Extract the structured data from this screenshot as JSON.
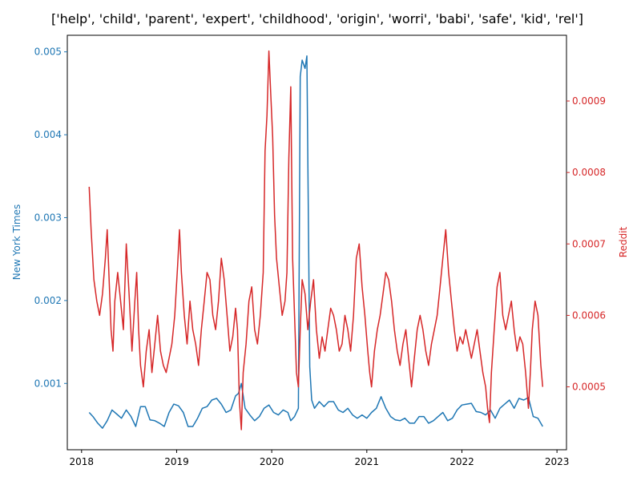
{
  "chart_data": {
    "type": "line",
    "title": "['help', 'child', 'parent', 'expert', 'childhood', 'origin', 'worri', 'babi', 'safe', 'kid', 'rel']",
    "xlabel": "",
    "x_ticks": [
      "2018",
      "2019",
      "2020",
      "2021",
      "2022",
      "2023"
    ],
    "xlim": [
      2017.85,
      2023.1
    ],
    "grid": false,
    "left_axis": {
      "label": "New York Times",
      "color": "#1f77b4",
      "ylim": [
        0.0002,
        0.0052
      ],
      "ticks": [
        "0.001",
        "0.002",
        "0.003",
        "0.004",
        "0.005"
      ]
    },
    "right_axis": {
      "label": "Reddit",
      "color": "#d62728",
      "ylim": [
        0.000412,
        0.000992
      ],
      "ticks": [
        "0.0005",
        "0.0006",
        "0.0007",
        "0.0008",
        "0.0009"
      ]
    },
    "series": [
      {
        "name": "New York Times",
        "axis": "left",
        "color": "#1f77b4",
        "x": [
          2018.08,
          2018.12,
          2018.17,
          2018.22,
          2018.27,
          2018.32,
          2018.37,
          2018.42,
          2018.47,
          2018.52,
          2018.57,
          2018.62,
          2018.67,
          2018.72,
          2018.77,
          2018.82,
          2018.87,
          2018.92,
          2018.97,
          2019.02,
          2019.07,
          2019.12,
          2019.17,
          2019.22,
          2019.27,
          2019.32,
          2019.37,
          2019.42,
          2019.47,
          2019.52,
          2019.57,
          2019.62,
          2019.65,
          2019.68,
          2019.72,
          2019.77,
          2019.82,
          2019.87,
          2019.92,
          2019.97,
          2020.02,
          2020.07,
          2020.12,
          2020.17,
          2020.2,
          2020.24,
          2020.28,
          2020.3,
          2020.32,
          2020.35,
          2020.37,
          2020.4,
          2020.42,
          2020.45,
          2020.5,
          2020.55,
          2020.6,
          2020.65,
          2020.7,
          2020.75,
          2020.8,
          2020.85,
          2020.9,
          2020.95,
          2021.0,
          2021.05,
          2021.1,
          2021.15,
          2021.2,
          2021.25,
          2021.3,
          2021.35,
          2021.4,
          2021.45,
          2021.5,
          2021.55,
          2021.6,
          2021.65,
          2021.7,
          2021.75,
          2021.8,
          2021.85,
          2021.9,
          2021.95,
          2022.0,
          2022.05,
          2022.1,
          2022.15,
          2022.2,
          2022.25,
          2022.3,
          2022.35,
          2022.4,
          2022.45,
          2022.5,
          2022.55,
          2022.6,
          2022.65,
          2022.7,
          2022.75,
          2022.8,
          2022.85
        ],
        "y": [
          0.00065,
          0.0006,
          0.00052,
          0.00046,
          0.00055,
          0.00068,
          0.00063,
          0.00058,
          0.00068,
          0.0006,
          0.00048,
          0.00072,
          0.00072,
          0.00056,
          0.00055,
          0.00052,
          0.00048,
          0.00065,
          0.00075,
          0.00073,
          0.00065,
          0.00048,
          0.00048,
          0.00058,
          0.0007,
          0.00072,
          0.0008,
          0.00082,
          0.00075,
          0.00065,
          0.00068,
          0.00085,
          0.00088,
          0.001,
          0.0007,
          0.00062,
          0.00055,
          0.0006,
          0.0007,
          0.00074,
          0.00065,
          0.00062,
          0.00068,
          0.00065,
          0.00055,
          0.0006,
          0.0007,
          0.0047,
          0.0049,
          0.0048,
          0.00495,
          0.0012,
          0.0008,
          0.0007,
          0.00078,
          0.00072,
          0.00078,
          0.00078,
          0.00068,
          0.00065,
          0.0007,
          0.00062,
          0.00058,
          0.00062,
          0.00058,
          0.00065,
          0.0007,
          0.00084,
          0.0007,
          0.0006,
          0.00056,
          0.00055,
          0.00058,
          0.00052,
          0.00052,
          0.0006,
          0.0006,
          0.00052,
          0.00055,
          0.0006,
          0.00065,
          0.00055,
          0.00058,
          0.00068,
          0.00074,
          0.00075,
          0.00076,
          0.00066,
          0.00065,
          0.00062,
          0.00068,
          0.00058,
          0.0007,
          0.00075,
          0.0008,
          0.0007,
          0.00082,
          0.0008,
          0.00083,
          0.0006,
          0.00058,
          0.00048
        ]
      },
      {
        "name": "Reddit",
        "axis": "right",
        "color": "#d62728",
        "x": [
          2018.08,
          2018.1,
          2018.13,
          2018.16,
          2018.19,
          2018.22,
          2018.25,
          2018.27,
          2018.29,
          2018.31,
          2018.33,
          2018.35,
          2018.38,
          2018.41,
          2018.44,
          2018.47,
          2018.5,
          2018.53,
          2018.56,
          2018.58,
          2018.6,
          2018.62,
          2018.65,
          2018.68,
          2018.71,
          2018.74,
          2018.77,
          2018.8,
          2018.83,
          2018.86,
          2018.89,
          2018.92,
          2018.95,
          2018.98,
          2019.01,
          2019.03,
          2019.05,
          2019.08,
          2019.11,
          2019.14,
          2019.17,
          2019.2,
          2019.23,
          2019.26,
          2019.29,
          2019.32,
          2019.35,
          2019.38,
          2019.41,
          2019.44,
          2019.47,
          2019.5,
          2019.53,
          2019.56,
          2019.59,
          2019.62,
          2019.64,
          2019.66,
          2019.68,
          2019.7,
          2019.73,
          2019.76,
          2019.79,
          2019.82,
          2019.85,
          2019.88,
          2019.91,
          2019.93,
          2019.95,
          2019.97,
          2019.99,
          2020.01,
          2020.03,
          2020.05,
          2020.08,
          2020.11,
          2020.14,
          2020.16,
          2020.18,
          2020.2,
          2020.22,
          2020.24,
          2020.26,
          2020.28,
          2020.3,
          2020.32,
          2020.35,
          2020.38,
          2020.41,
          2020.44,
          2020.47,
          2020.5,
          2020.53,
          2020.56,
          2020.59,
          2020.62,
          2020.65,
          2020.68,
          2020.71,
          2020.74,
          2020.77,
          2020.8,
          2020.83,
          2020.86,
          2020.89,
          2020.92,
          2020.95,
          2020.98,
          2021.01,
          2021.03,
          2021.05,
          2021.08,
          2021.11,
          2021.14,
          2021.17,
          2021.2,
          2021.23,
          2021.26,
          2021.29,
          2021.32,
          2021.35,
          2021.38,
          2021.41,
          2021.44,
          2021.47,
          2021.5,
          2021.53,
          2021.56,
          2021.59,
          2021.62,
          2021.65,
          2021.68,
          2021.71,
          2021.74,
          2021.77,
          2021.8,
          2021.83,
          2021.86,
          2021.89,
          2021.92,
          2021.95,
          2021.98,
          2022.01,
          2022.04,
          2022.07,
          2022.1,
          2022.13,
          2022.16,
          2022.19,
          2022.22,
          2022.25,
          2022.27,
          2022.29,
          2022.31,
          2022.34,
          2022.37,
          2022.4,
          2022.43,
          2022.46,
          2022.49,
          2022.52,
          2022.55,
          2022.58,
          2022.61,
          2022.64,
          2022.67,
          2022.7,
          2022.72,
          2022.74,
          2022.77,
          2022.8,
          2022.83,
          2022.85
        ],
        "y": [
          0.00078,
          0.00072,
          0.00065,
          0.00062,
          0.0006,
          0.00063,
          0.00068,
          0.00072,
          0.00065,
          0.00058,
          0.00055,
          0.00062,
          0.00066,
          0.00062,
          0.00058,
          0.0007,
          0.00063,
          0.00055,
          0.00062,
          0.00066,
          0.00058,
          0.00053,
          0.0005,
          0.00055,
          0.00058,
          0.00052,
          0.00056,
          0.0006,
          0.00055,
          0.00053,
          0.00052,
          0.00054,
          0.00056,
          0.0006,
          0.00067,
          0.00072,
          0.00066,
          0.0006,
          0.00056,
          0.00062,
          0.00058,
          0.00056,
          0.00053,
          0.00058,
          0.00062,
          0.00066,
          0.00065,
          0.0006,
          0.00058,
          0.00062,
          0.00068,
          0.00065,
          0.0006,
          0.00055,
          0.00057,
          0.00061,
          0.00058,
          0.00048,
          0.00044,
          0.00052,
          0.00056,
          0.00062,
          0.00064,
          0.00058,
          0.00056,
          0.0006,
          0.00066,
          0.00083,
          0.00088,
          0.00097,
          0.00091,
          0.00085,
          0.00074,
          0.00068,
          0.00064,
          0.0006,
          0.00062,
          0.00066,
          0.00082,
          0.00092,
          0.00068,
          0.0006,
          0.00052,
          0.0005,
          0.00058,
          0.00065,
          0.00063,
          0.00058,
          0.00062,
          0.00065,
          0.00058,
          0.00054,
          0.00057,
          0.00055,
          0.00058,
          0.00061,
          0.0006,
          0.00058,
          0.00055,
          0.00056,
          0.0006,
          0.00058,
          0.00055,
          0.0006,
          0.00068,
          0.0007,
          0.00064,
          0.0006,
          0.00055,
          0.00052,
          0.0005,
          0.00055,
          0.00058,
          0.0006,
          0.00063,
          0.00066,
          0.00065,
          0.00062,
          0.00058,
          0.00055,
          0.00053,
          0.00056,
          0.00058,
          0.00054,
          0.0005,
          0.00054,
          0.00058,
          0.0006,
          0.00058,
          0.00055,
          0.00053,
          0.00056,
          0.00058,
          0.0006,
          0.00064,
          0.00068,
          0.00072,
          0.00066,
          0.00062,
          0.00058,
          0.00055,
          0.00057,
          0.00056,
          0.00058,
          0.00056,
          0.00054,
          0.00056,
          0.00058,
          0.00055,
          0.00052,
          0.0005,
          0.00047,
          0.00045,
          0.00052,
          0.00058,
          0.00064,
          0.00066,
          0.0006,
          0.00058,
          0.0006,
          0.00062,
          0.00058,
          0.00055,
          0.00057,
          0.00056,
          0.00052,
          0.00047,
          0.00052,
          0.00058,
          0.00062,
          0.0006,
          0.00053,
          0.0005
        ]
      }
    ]
  }
}
